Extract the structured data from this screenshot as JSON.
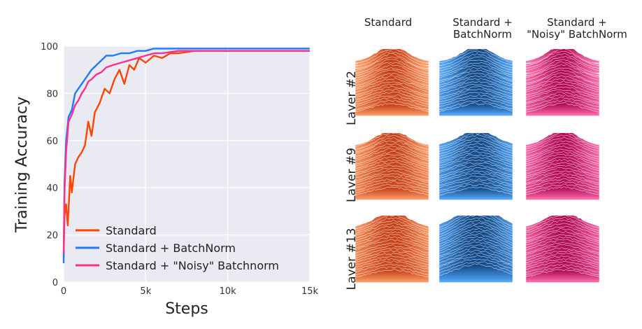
{
  "chart_data": [
    {
      "type": "line",
      "xlabel": "Steps",
      "ylabel": "Training Accuracy",
      "xlim": [
        0,
        15000
      ],
      "ylim": [
        0,
        100
      ],
      "xticks": [
        0,
        5000,
        10000,
        15000
      ],
      "xtick_labels": [
        "0",
        "5k",
        "10k",
        "15k"
      ],
      "yticks": [
        0,
        20,
        40,
        60,
        80,
        100
      ],
      "ytick_labels": [
        "0",
        "20",
        "40",
        "60",
        "80",
        "100"
      ],
      "grid": true,
      "legend_position": "bottom-right",
      "series": [
        {
          "name": "Standard",
          "color": "#ff4500",
          "x": [
            0,
            50,
            150,
            250,
            400,
            500,
            700,
            900,
            1100,
            1300,
            1500,
            1700,
            1900,
            2200,
            2500,
            2800,
            3100,
            3400,
            3700,
            4000,
            4300,
            4600,
            5000,
            5500,
            6000,
            6500,
            7000,
            8000,
            9000,
            10000,
            11000,
            12000,
            13000,
            14000,
            15000
          ],
          "y": [
            10,
            28,
            33,
            24,
            45,
            38,
            50,
            53,
            55,
            58,
            68,
            62,
            72,
            76,
            82,
            80,
            86,
            90,
            84,
            92,
            90,
            95,
            93,
            96,
            95,
            97,
            97,
            98,
            98,
            98,
            98,
            98,
            98,
            98,
            98
          ]
        },
        {
          "name": "Standard + BatchNorm",
          "color": "#1e7bff",
          "x": [
            0,
            50,
            150,
            300,
            500,
            700,
            900,
            1100,
            1300,
            1500,
            1700,
            2000,
            2300,
            2600,
            3000,
            3500,
            4000,
            4500,
            5000,
            5500,
            6000,
            7000,
            8000,
            9000,
            10000,
            11000,
            12000,
            13000,
            14000,
            15000
          ],
          "y": [
            8,
            42,
            60,
            70,
            73,
            80,
            82,
            84,
            86,
            88,
            90,
            92,
            94,
            96,
            96,
            97,
            97,
            98,
            98,
            99,
            99,
            99,
            99,
            99,
            99,
            99,
            99,
            99,
            99,
            99
          ]
        },
        {
          "name": "Standard + \"Noisy\" Batchnorm",
          "color": "#ff2f8e",
          "x": [
            0,
            50,
            150,
            300,
            500,
            700,
            900,
            1100,
            1300,
            1500,
            1700,
            2000,
            2300,
            2600,
            3000,
            3500,
            4000,
            4500,
            5000,
            5500,
            6000,
            7000,
            8000,
            9000,
            10000,
            11000,
            12000,
            13000,
            14000,
            15000
          ],
          "y": [
            12,
            38,
            55,
            68,
            71,
            75,
            77,
            80,
            82,
            85,
            86,
            88,
            89,
            91,
            92,
            93,
            94,
            95,
            96,
            97,
            97,
            98,
            98,
            98,
            98,
            98,
            98,
            98,
            98,
            98
          ]
        }
      ]
    }
  ],
  "figure": {
    "column_titles": [
      "Standard",
      "Standard +\nBatchNorm",
      "Standard +\n\"Noisy\" BatchNorm"
    ],
    "row_labels": [
      "Layer #2",
      "Layer #9",
      "Layer #13"
    ],
    "column_colors": [
      {
        "top": "#c0360e",
        "bottom": "#ffa06a"
      },
      {
        "top": "#0d3f7a",
        "bottom": "#55aaff"
      },
      {
        "top": "#a8004a",
        "bottom": "#ff6fae"
      }
    ]
  }
}
